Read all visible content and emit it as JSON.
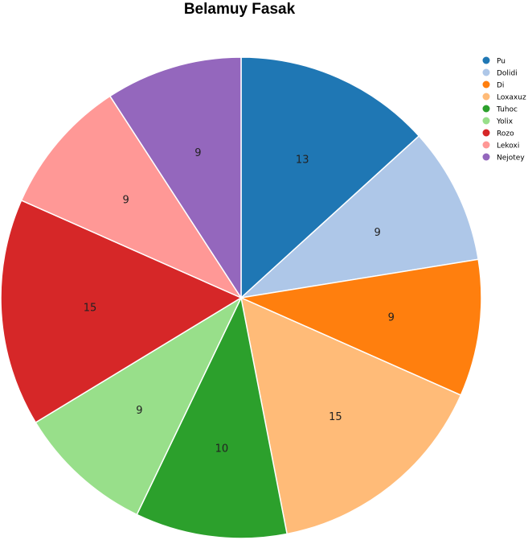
{
  "chart_data": {
    "type": "pie",
    "title": "Belamuy Fasak",
    "categories": [
      "Pu",
      "Dolidi",
      "Di",
      "Loxaxuz",
      "Tuhoc",
      "Yolix",
      "Rozo",
      "Lekoxi",
      "Nejotey"
    ],
    "values": [
      13,
      9,
      9,
      15,
      10,
      9,
      15,
      9,
      9
    ],
    "colors": [
      "#1f77b4",
      "#aec7e8",
      "#ff7f0e",
      "#ffbb78",
      "#2ca02c",
      "#98df8a",
      "#d62728",
      "#ff9896",
      "#9467bd"
    ],
    "legend_position": "top-right",
    "start_angle": "top",
    "direction": "clockwise"
  }
}
